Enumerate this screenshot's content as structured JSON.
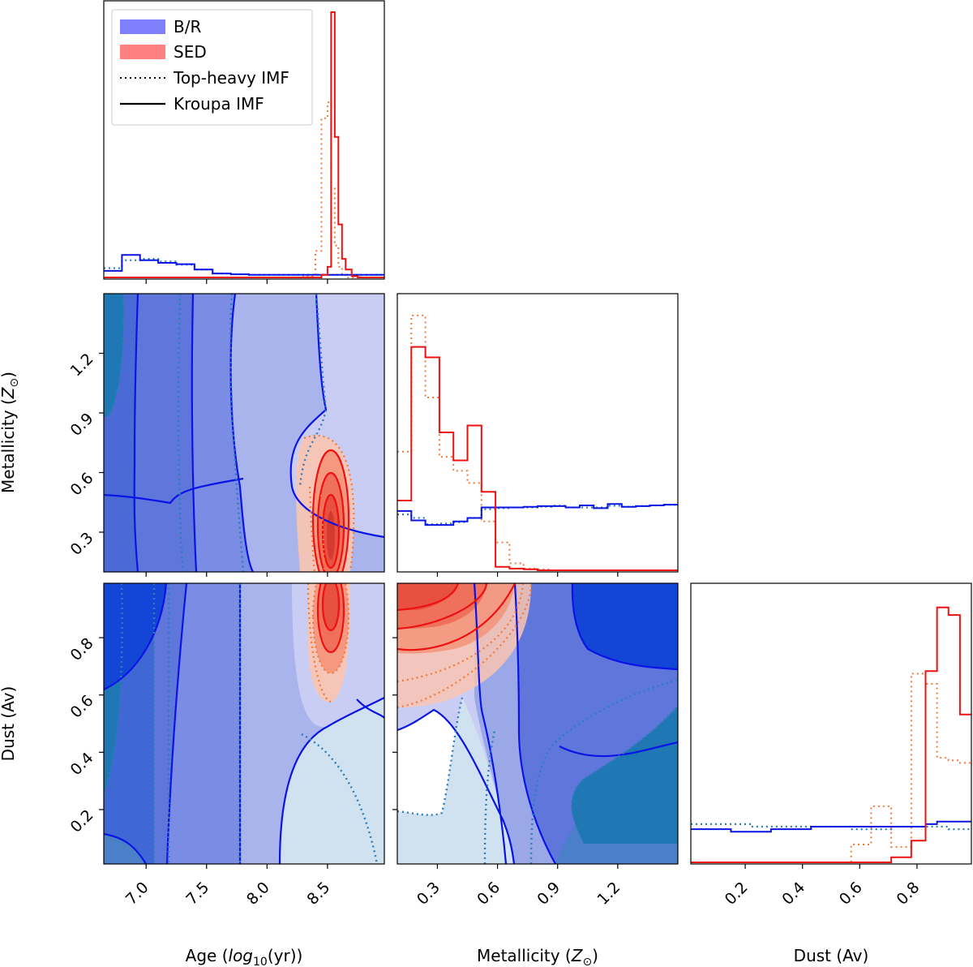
{
  "chart_data": {
    "type": "corner",
    "parameters": [
      {
        "key": "age",
        "label": "Age (log10(yr))",
        "label_pre": "Age (",
        "label_math": "log",
        "label_sub": "10",
        "label_post": "(yr))",
        "range": [
          6.65,
          8.97
        ],
        "ticks": [
          7.0,
          7.5,
          8.0,
          8.5
        ],
        "tick_labels": [
          "7.0",
          "7.5",
          "8.0",
          "8.5"
        ]
      },
      {
        "key": "metallicity",
        "label": "Metallicity (Z⊙)",
        "label_pre": "Metallicity (",
        "label_math": "Z",
        "label_sub": "⊙",
        "label_post": ")",
        "range": [
          0.1,
          1.5
        ],
        "ticks": [
          0.3,
          0.6,
          0.9,
          1.2
        ],
        "tick_labels": [
          "0.3",
          "0.6",
          "0.9",
          "1.2"
        ]
      },
      {
        "key": "dust",
        "label": "Dust (Av)",
        "label_pre": "Dust (Av)",
        "label_math": "",
        "label_sub": "",
        "label_post": "",
        "range": [
          0.01,
          0.99
        ],
        "ticks": [
          0.2,
          0.4,
          0.6,
          0.8
        ],
        "tick_labels": [
          "0.2",
          "0.4",
          "0.6",
          "0.8"
        ]
      }
    ],
    "legend": {
      "position": "top-left",
      "entries": [
        {
          "label": "B/R",
          "kind": "patch",
          "color": "#8080ff"
        },
        {
          "label": "SED",
          "kind": "patch",
          "color": "#ff8080"
        },
        {
          "label": "Top-heavy IMF",
          "kind": "line",
          "style": "dotted",
          "color": "#000000"
        },
        {
          "label": "Kroupa IMF",
          "kind": "line",
          "style": "solid",
          "color": "#000000"
        }
      ]
    },
    "colors": {
      "br_kroupa_line": "#0a14e6",
      "br_topheavy_line": "#2f7db8",
      "sed_kroupa_line": "#ee1111",
      "sed_topheavy_line": "#f07a3c",
      "br_fill_levels": [
        "#d0e1ef",
        "#8794e8",
        "#6075dd",
        "#3f68d4",
        "#1f77b4",
        "#1345d6"
      ],
      "sed_fill_levels": [
        "#fde0d4",
        "#f9b7a2",
        "#f4937a",
        "#ee6d58",
        "#e8503f"
      ]
    },
    "histograms_1d": {
      "age": {
        "bins": [
          6.65,
          6.8,
          6.95,
          7.1,
          7.25,
          7.4,
          7.55,
          7.7,
          7.85,
          8.0,
          8.15,
          8.3,
          8.4,
          8.45,
          8.5,
          8.53,
          8.56,
          8.59,
          8.62,
          8.65,
          8.7,
          8.75,
          8.85,
          8.97
        ],
        "br_kroupa": [
          0.025,
          0.085,
          0.065,
          0.055,
          0.05,
          0.03,
          0.015,
          0.012,
          0.01,
          0.01,
          0.01,
          0.01,
          0.01,
          0.01,
          0.01,
          0.01,
          0.01,
          0.01,
          0.01,
          0.01,
          0.01,
          0.01,
          0.01
        ],
        "br_topheavy": [
          0.035,
          0.065,
          0.07,
          0.06,
          0.048,
          0.03,
          0.015,
          0.012,
          0.01,
          0.01,
          0.01,
          0.01,
          0.01,
          0.01,
          0.01,
          0.01,
          0.01,
          0.01,
          0.01,
          0.01,
          0.01,
          0.01,
          0.01
        ],
        "sed_kroupa": [
          0,
          0,
          0,
          0,
          0,
          0,
          0,
          0,
          0,
          0,
          0,
          0,
          0,
          0.01,
          0.04,
          1.0,
          0.53,
          0.2,
          0.07,
          0.03,
          0.005,
          0,
          0
        ],
        "sed_topheavy": [
          0,
          0,
          0,
          0,
          0,
          0,
          0,
          0,
          0,
          0,
          0,
          0.005,
          0.1,
          0.6,
          0.66,
          0.34,
          0.12,
          0.04,
          0.012,
          0,
          0,
          0,
          0
        ]
      },
      "metallicity": {
        "bins": [
          0.1,
          0.17,
          0.24,
          0.31,
          0.38,
          0.45,
          0.52,
          0.59,
          0.66,
          0.73,
          0.8,
          0.87,
          0.94,
          1.01,
          1.08,
          1.15,
          1.22,
          1.29,
          1.36,
          1.43,
          1.5
        ],
        "br_kroupa": [
          0.17,
          0.143,
          0.13,
          0.13,
          0.14,
          0.15,
          0.18,
          0.18,
          0.18,
          0.182,
          0.184,
          0.184,
          0.18,
          0.186,
          0.178,
          0.19,
          0.182,
          0.184,
          0.186,
          0.188
        ],
        "br_topheavy": [
          0.16,
          0.15,
          0.132,
          0.134,
          0.138,
          0.15,
          0.175,
          0.178,
          0.18,
          0.18,
          0.182,
          0.185,
          0.18,
          0.18,
          0.18,
          0.185,
          0.182,
          0.184,
          0.186,
          0.188
        ],
        "sed_kroupa": [
          0.2,
          0.64,
          0.61,
          0.395,
          0.315,
          0.415,
          0.225,
          0.01,
          0.005,
          0.003,
          0,
          0,
          0,
          0,
          0,
          0,
          0,
          0,
          0,
          0
        ],
        "sed_topheavy": [
          0.34,
          0.73,
          0.495,
          0.325,
          0.285,
          0.25,
          0.14,
          0.08,
          0.02,
          0.005,
          0.003,
          0,
          0,
          0,
          0,
          0,
          0,
          0,
          0,
          0
        ]
      },
      "dust": {
        "bins": [
          0.01,
          0.08,
          0.15,
          0.22,
          0.29,
          0.36,
          0.43,
          0.5,
          0.57,
          0.64,
          0.71,
          0.78,
          0.83,
          0.87,
          0.91,
          0.95,
          0.99
        ],
        "br_kroupa": [
          0.13,
          0.13,
          0.12,
          0.12,
          0.13,
          0.13,
          0.14,
          0.14,
          0.14,
          0.14,
          0.14,
          0.14,
          0.15,
          0.16,
          0.16,
          0.16
        ],
        "br_topheavy": [
          0.15,
          0.15,
          0.15,
          0.14,
          0.14,
          0.14,
          0.14,
          0.14,
          0.13,
          0.13,
          0.14,
          0.14,
          0.14,
          0.14,
          0.13,
          0.13
        ],
        "sed_kroupa": [
          0,
          0,
          0,
          0,
          0,
          0,
          0,
          0,
          0,
          0,
          0.02,
          0.085,
          0.75,
          1.0,
          0.97,
          0.58
        ],
        "sed_topheavy": [
          0,
          0,
          0,
          0,
          0,
          0,
          0,
          0,
          0.07,
          0.22,
          0.06,
          0.74,
          0.7,
          0.41,
          0.4,
          0.39
        ]
      }
    },
    "panels_2d": [
      {
        "x": "age",
        "y": "metallicity"
      },
      {
        "x": "age",
        "y": "dust"
      },
      {
        "x": "metallicity",
        "y": "dust"
      }
    ]
  }
}
